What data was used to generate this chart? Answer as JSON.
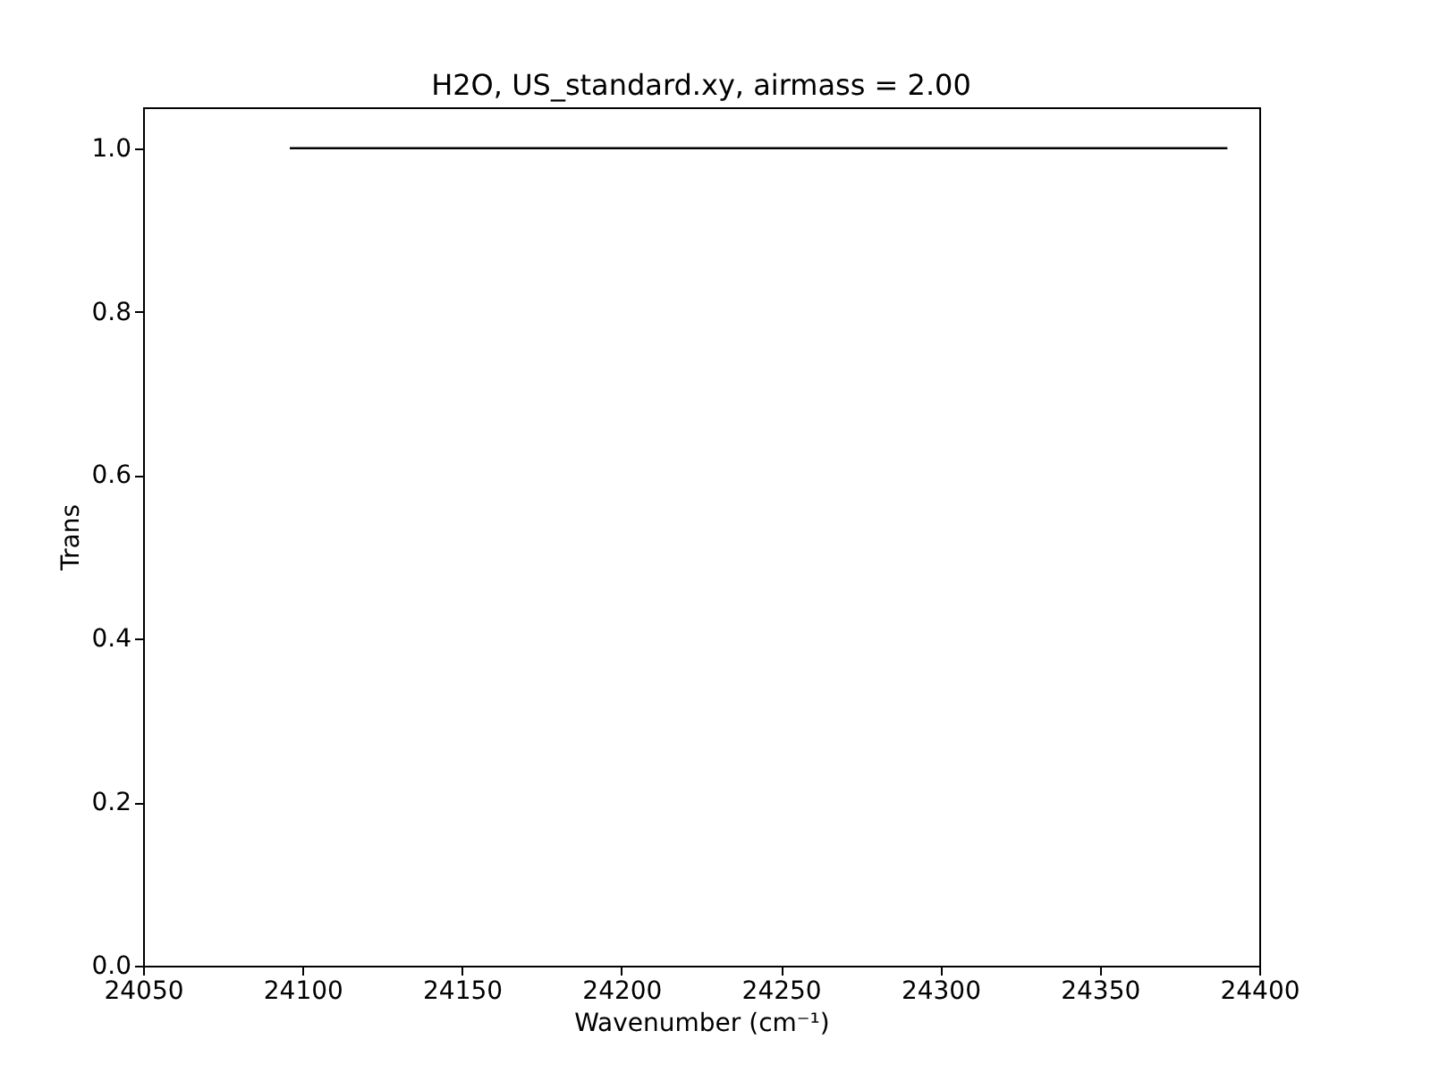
{
  "chart_data": {
    "type": "line",
    "title": "H2O, US_standard.xy, airmass = 2.00",
    "xlabel": "Wavenumber (cm⁻¹)",
    "ylabel": "Trans",
    "series": [
      {
        "color": "#000000",
        "x": [
          24096,
          24390
        ],
        "values": [
          1.0,
          1.0
        ]
      }
    ],
    "xlim": [
      24050,
      24400
    ],
    "xticks": [
      24050,
      24100,
      24150,
      24200,
      24250,
      24300,
      24350,
      24400
    ],
    "ylim": [
      0,
      1.05
    ],
    "yticks": [
      {
        "value": 0,
        "label": "0.0"
      },
      {
        "value": 0.2,
        "label": "0.2"
      },
      {
        "value": 0.4,
        "label": "0.4"
      },
      {
        "value": 0.6,
        "label": "0.6"
      },
      {
        "value": 0.8,
        "label": "0.8"
      },
      {
        "value": 1.0,
        "label": "1.0"
      }
    ]
  }
}
